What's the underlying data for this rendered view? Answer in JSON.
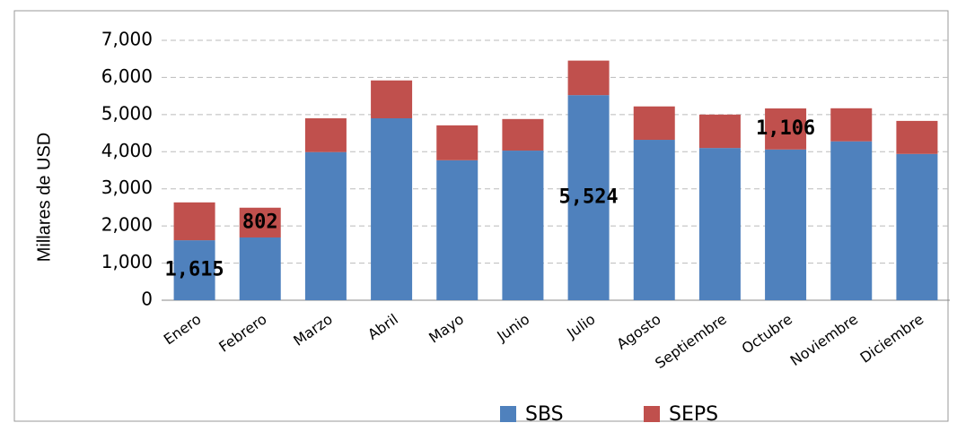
{
  "chart_data": {
    "type": "stacked-bar",
    "y_label": "Millares de USD",
    "categories": [
      "Enero",
      "Febrero",
      "Marzo",
      "Abril",
      "Mayo",
      "Junio",
      "Julio",
      "Agosto",
      "Septiembre",
      "Octubre",
      "Noviembre",
      "Diciembre"
    ],
    "series": [
      {
        "name": "SBS",
        "color": "#4f81bd",
        "values": [
          1615,
          1690,
          3990,
          4900,
          3770,
          4030,
          5524,
          4320,
          4100,
          4060,
          4280,
          3940
        ],
        "value_labels": [
          "1,615",
          null,
          null,
          null,
          null,
          null,
          "5,524",
          null,
          null,
          null,
          null,
          null
        ]
      },
      {
        "name": "SEPS",
        "color": "#c0504d",
        "values": [
          1020,
          802,
          910,
          1020,
          940,
          850,
          930,
          900,
          900,
          1106,
          890,
          890
        ],
        "value_labels": [
          null,
          "802",
          null,
          null,
          null,
          null,
          null,
          null,
          null,
          "1,106",
          null,
          null
        ]
      }
    ],
    "ylim": [
      0,
      7000
    ],
    "yticks": [
      0,
      {
        "value": 1000,
        "label": "1,000"
      },
      {
        "value": 2000,
        "label": "2,000"
      },
      {
        "value": 3000,
        "label": "3,000"
      },
      {
        "value": 4000,
        "label": "4,000"
      },
      {
        "value": 5000,
        "label": "5,000"
      },
      {
        "value": 6000,
        "label": "6,000"
      },
      {
        "value": 7000,
        "label": "7,000"
      }
    ],
    "grid": true,
    "legend": "bottom"
  }
}
